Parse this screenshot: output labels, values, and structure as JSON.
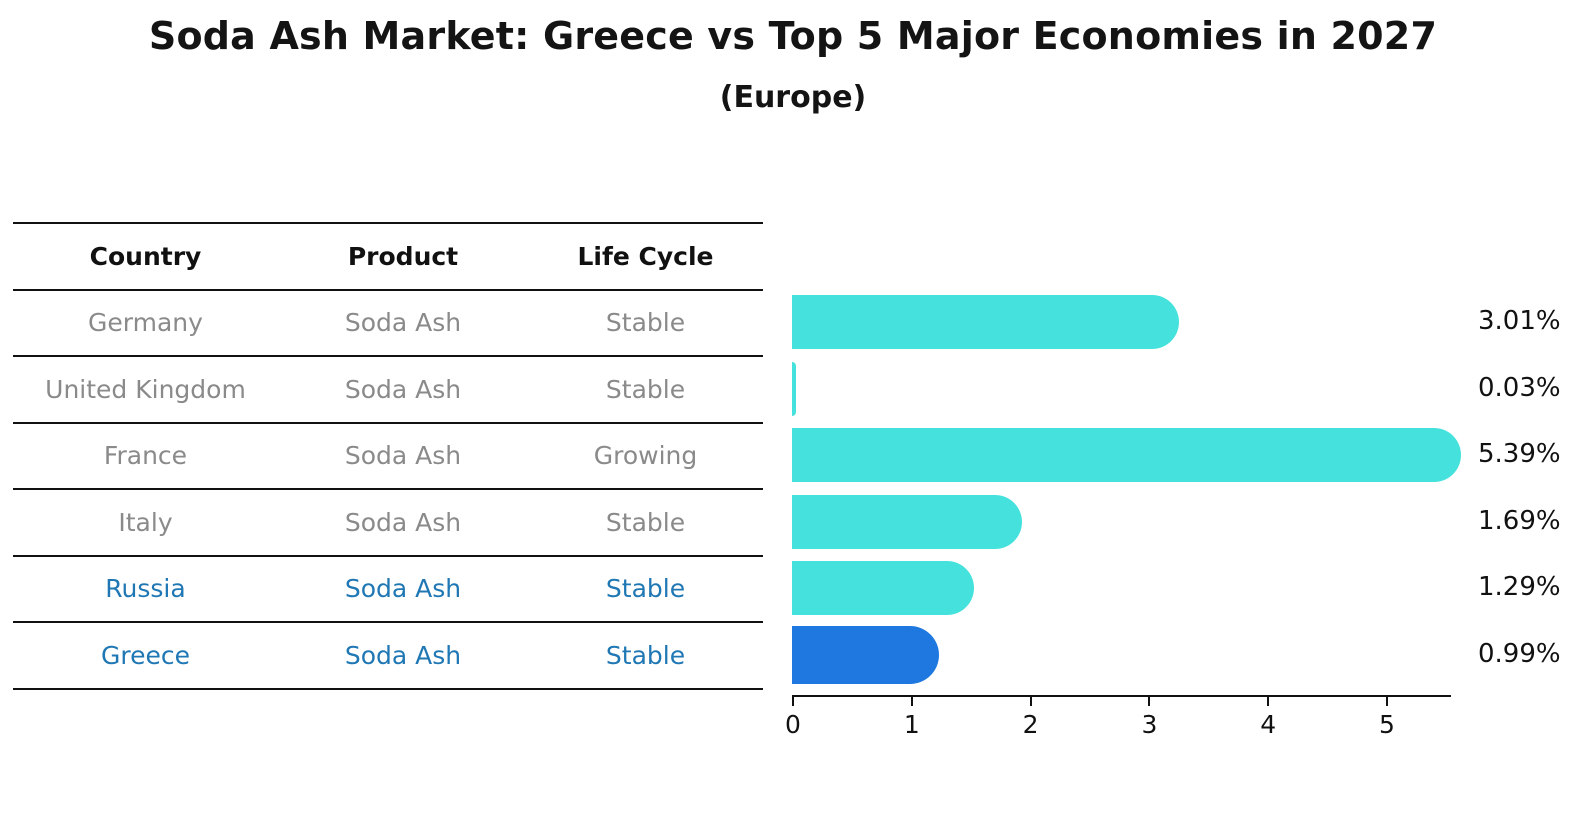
{
  "table": {
    "headers": [
      "Country",
      "Product",
      "Life Cycle"
    ],
    "rows": [
      {
        "country": "Germany",
        "product": "Soda Ash",
        "life_cycle": "Stable",
        "highlighted": false
      },
      {
        "country": "United Kingdom",
        "product": "Soda Ash",
        "life_cycle": "Stable",
        "highlighted": false
      },
      {
        "country": "France",
        "product": "Soda Ash",
        "life_cycle": "Growing",
        "highlighted": false
      },
      {
        "country": "Italy",
        "product": "Soda Ash",
        "life_cycle": "Stable",
        "highlighted": false
      },
      {
        "country": "Russia",
        "product": "Soda Ash",
        "life_cycle": "Stable",
        "highlighted": true
      },
      {
        "country": "Greece",
        "product": "Soda Ash",
        "life_cycle": "Stable",
        "highlighted": true
      }
    ]
  },
  "chart_data": {
    "type": "bar",
    "orientation": "horizontal",
    "title": "Soda Ash Market: Greece vs Top 5 Major Economies in 2027",
    "subtitle": "(Europe)",
    "categories": [
      "Germany",
      "United Kingdom",
      "France",
      "Italy",
      "Russia",
      "Greece"
    ],
    "values": [
      3.01,
      0.03,
      5.39,
      1.69,
      1.29,
      0.99
    ],
    "value_labels": [
      "3.01%",
      "0.03%",
      "5.39%",
      "1.69%",
      "1.29%",
      "0.99%"
    ],
    "x_ticks": [
      "0",
      "1",
      "2",
      "3",
      "4",
      "5"
    ],
    "xlim": [
      0,
      5.55
    ],
    "xlabel": "",
    "ylabel": "",
    "grid": false,
    "legend": false,
    "bar_color": "#45E2DD",
    "highlight_index": 5,
    "highlight_bar_color": "#1E78E0",
    "highlight_bar_edge_color": "#1E78E0",
    "highlight_text_color": "#1F77B4",
    "table_text_color": "#8a8a8a",
    "axis_color": "#111111"
  }
}
